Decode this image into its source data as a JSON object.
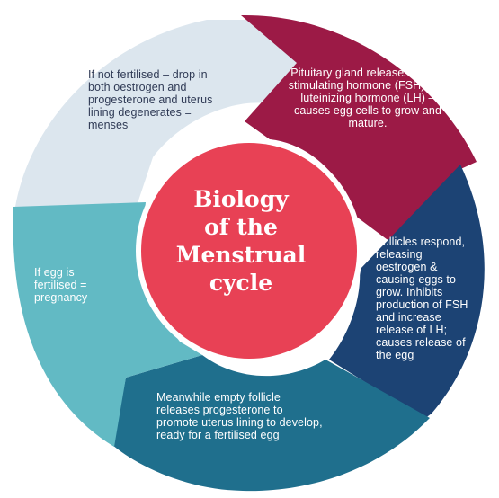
{
  "diagram": {
    "center_title": "Biology\nof the\nMenstrual\ncycle",
    "segments": [
      {
        "id": "pituitary",
        "text": "Pituitary gland releases follicle stimulating hormone (FSH) and luteinizing hormone (LH) – causes egg cells to grow and mature.",
        "color": "#9c1a46"
      },
      {
        "id": "follicles",
        "text": "Follicles respond, releasing oestrogen & causing eggs to grow. Inhibits production of FSH and increase release of LH; causes release of the egg",
        "color": "#1c4374"
      },
      {
        "id": "meanwhile",
        "text": "Meanwhile empty follicle releases progesterone to promote uterus lining to develop, ready for a fertilised egg",
        "color": "#1f6f8d"
      },
      {
        "id": "egg",
        "text": "If egg is fertilised = pregnancy",
        "color": "#62bac4"
      },
      {
        "id": "notfert",
        "text": "If not fertilised – drop in both oestrogen and progesterone and uterus lining degenerates = menses",
        "color": "#dce6ee"
      }
    ],
    "center_color": "#e84155"
  }
}
